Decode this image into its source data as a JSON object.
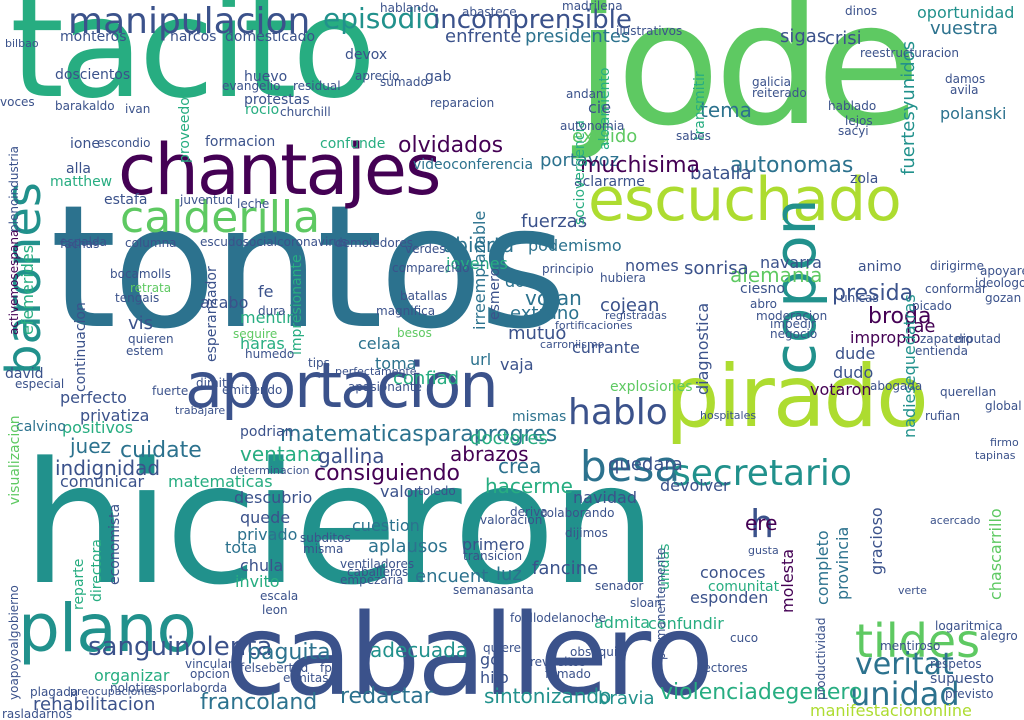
{
  "palette": {
    "dark_purple": "#440154",
    "indigo": "#3b528b",
    "steel_blue": "#2c728e",
    "teal": "#21918c",
    "green": "#27ad81",
    "light_green": "#5ec962",
    "lime": "#addc30",
    "yellow": "#fde725"
  },
  "words": {
    "tontos": "tontos",
    "hicieron": "hicieron",
    "tacito": "tacito",
    "jode": "jode",
    "caballero": "caballero",
    "chantajes": "chantajes",
    "pirado": "pirado",
    "escuchado": "escuchado",
    "aportacion": "aportacion",
    "plano": "plano",
    "calderilla": "calderilla",
    "barones": "barones",
    "copon": "copon",
    "manipulacion": "manipulacion",
    "episodio": "episodio",
    "incomprensible": "incomprensible",
    "besa": "besa",
    "secretario": "secretario",
    "tildes": "tildes",
    "unidad": "unidad",
    "veritat": "veritat",
    "sanguinolenta": "sanguinolenta",
    "paguita": "paguita",
    "adecuada": "adecuada",
    "redactar": "redactar",
    "sintonizando": "sintonizando",
    "francoland": "francoland",
    "rehabilitacion": "rehabilitacion",
    "violenciadegenero": "violenciadegenero",
    "manifestaciononline": "manifestaciononline",
    "bravia": "bravia",
    "hablo": "hablo",
    "matematicasparaprogres": "matematicasparaprogres",
    "consiguiendo": "consiguiendo",
    "cuidate": "cuidate",
    "indignidad": "indignidad",
    "juez": "juez",
    "ventana": "ventana",
    "gallina": "gallina",
    "abrazos": "abrazos",
    "crea": "crea",
    "hacerme": "hacerme",
    "doctores": "doctores",
    "quedara": "quedara",
    "alemania": "alemania",
    "autonomas": "autonomas",
    "batalla": "batalla",
    "portavoz": "portavoz",
    "muchisima": "muchisima",
    "olvidados": "olvidados",
    "exigido": "exigido",
    "tema": "tema",
    "presidentes": "presidentes",
    "enfrente": "enfrente",
    "sigas": "sigas",
    "crisi": "crisi",
    "vuestra": "vuestra",
    "oportunidad": "oportunidad",
    "fuertesyunidos": "fuertesyunidos",
    "polanski": "polanski",
    "abierta": "abierta",
    "fuerzas": "fuerzas",
    "podemismo": "podemismo",
    "jovenes": "jovenes",
    "sonrisa": "sonrisa",
    "navarra": "navarra",
    "nomes": "nomes",
    "presida": "presida",
    "broda": "broda",
    "rae": "rae",
    "impropio": "impropio",
    "dude": "dude",
    "dudo": "dudo",
    "votaron": "votaron",
    "votan": "votan",
    "extrano": "extrano",
    "mutuo": "mutuo",
    "cojean": "cojean",
    "currante": "currante",
    "dono": "dono",
    "vaja": "vaja",
    "confiad": "confiad",
    "url": "url",
    "toma": "toma",
    "celaa": "celaa",
    "fe": "fe",
    "mentir": "mentir",
    "vis": "vis",
    "acabo": "acabo",
    "haras": "haras",
    "perfecto": "perfecto",
    "privatiza": "privatiza",
    "positivos": "positivos",
    "calvino": "calvino",
    "comunicar": "comunicar",
    "matematicas": "matematicas",
    "podrian": "podrian",
    "valor": "valor",
    "descubrio": "descubrio",
    "quede": "quede",
    "privado": "privado",
    "tota": "tota",
    "cuestion": "cuestion",
    "aplausos": "aplausos",
    "encuent": "encuent",
    "luz": "luz",
    "fancine": "fancine",
    "primero": "primero",
    "chula": "chula",
    "invito": "invito",
    "navidad": "navidad",
    "devolver": "devolver",
    "conoces": "conoces",
    "esponden": "esponden",
    "completo": "completo",
    "provincia": "provincia",
    "gracioso": "gracioso",
    "molesta": "molesta",
    "chascarrillo": "chascarrillo",
    "comunitat": "comunitat",
    "admita": "admita",
    "confundir": "confundir",
    "gol": "gol",
    "hijo": "hijo",
    "formacion": "formacion",
    "confunde": "confunde",
    "protestas": "protestas",
    "huevo": "huevo",
    "gab": "gab",
    "devox": "devox",
    "domesticado": "domesticado",
    "monteros": "monteros",
    "narcos": "narcos",
    "doscientos": "doscientos",
    "proveedor": "proveedor",
    "efemerides": "efemerides",
    "matthew": "matthew",
    "alla": "alla",
    "estafa": "estafa",
    "ione": "ione",
    "voces": "voces",
    "esperanzador": "esperanzador",
    "impresionante": "impresionante",
    "irreemplazable": "irreemplazable",
    "esmero": "esmero",
    "diagnostica": "diagnostica",
    "nadiesequedatras": "nadiesequedatras",
    "aclararme": "aclararme",
    "videoconferencia": "videoconferencia",
    "sociovergencia": "sociovergencia",
    "alojamiento": "alojamiento",
    "transmitir": "transmitir",
    "organizar": "organizar",
    "economista": "economista",
    "directora": "directora",
    "reparte": "reparte",
    "unidas": "unidas",
    "orgullo": "orgullo",
    "continuacion": "continuacion",
    "explosiones": "explosiones",
    "fotillodelanoche": "fotillodelanoche",
    "comprometo": "comprometo",
    "hablando": "hablando",
    "abastece": "abastece",
    "madrilena": "madrilena",
    "dinos": "dinos",
    "rocio": "rocio",
    "h": "h",
    "cie": "cie",
    "ere": "ere",
    "zola": "zola",
    "david": "david",
    "fachas": "fachas",
    "bocamolls": "bocamolls",
    "tengais": "tengais",
    "retrata": "retrata",
    "quieren": "quieren",
    "estem": "estem",
    "especial": "especial",
    "fuerte": "fuerte",
    "dimite": "dimite",
    "emitiendo": "emitiendo",
    "apasionante": "apasionante",
    "profugo": "profugo",
    "mismas": "mismas",
    "existente": "existente",
    "desgracia": "desgracia",
    "confiamos": "confiamos",
    "asombroso": "asombroso",
    "conocerte": "conocerte",
    "repetir": "repetir",
    "aguantar": "aguantar",
    "cabeceras": "cabeceras",
    "ventiladores": "ventiladores",
    "caballeros": "caballeros",
    "empezaria": "empezaria",
    "subditos": "subditos",
    "misma": "misma",
    "murcia": "murcia",
    "transicion": "transicion",
    "dijimos": "dijimos",
    "semanasanta": "semanasanta",
    "valoracion": "valoracion",
    "sloan": "sloan",
    "senador": "senador",
    "revueltos": "revueltos",
    "fumado": "fumado",
    "lectores": "lectores",
    "cuco": "cuco",
    "respetos": "respetos",
    "mentiroso": "mentiroso",
    "supuesto": "supuesto",
    "previsto": "previsto",
    "logaritmica": "logaritmica",
    "global": "global",
    "alegro": "alegro",
    "apoyemos": "apoyemos",
    "gozan": "gozan",
    "ideologos": "ideologos",
    "apoyare": "apoyare",
    "conformar": "conformar",
    "dirigirme": "dirigirme",
    "picado": "picado",
    "animo": "animo",
    "abrazo": "abrazo",
    "diputad": "diputad",
    "zapatero": "zapatero",
    "entienda": "entienda",
    "abogada": "abogada",
    "querellan": "querellan",
    "rufian": "rufian",
    "damos": "damos",
    "avila": "avila",
    "lejos": "lejos",
    "sacyi": "sacyi",
    "hablado": "hablado",
    "galicia": "galicia",
    "reiterado": "reiterado",
    "andan": "andan",
    "autonomia": "autonomia",
    "reparacion": "reparacion",
    "jefazo": "jefazo",
    "aprecio": "aprecio",
    "sumado": "sumado",
    "residual": "residual",
    "evangelio": "evangelio",
    "churchill": "churchill",
    "barakaldo": "barakaldo",
    "ivan": "ivan",
    "escondio": "escondio",
    "juventud": "juventud",
    "leche": "leche",
    "espalda": "espalda",
    "columna": "columna",
    "escudosocialcoronavirus": "escudosocialcoronavirus",
    "demoledores": "demoledores",
    "comparecido": "comparecido",
    "verdes": "verdes",
    "principio": "principio",
    "hubiera": "hubiera",
    "parciales": "parciales",
    "ciesno": "ciesno",
    "almudena": "almudena",
    "atreven": "atreven",
    "abro": "abro",
    "sabes": "sabes",
    "apoyar": "apoyar",
    "recibiendo": "recibiendo",
    "acento": "acento",
    "decada": "decada",
    "necesarias": "necesarias",
    "comercio": "comercio",
    "recomienda": "recomienda",
    "reestructuracion": "reestructuracion",
    "ilustrativos": "ilustrativos",
    "privatizar": "privatizar",
    "ensenanza": "ensenanza",
    "pagara": "pagara",
    "publican": "publican",
    "bocado": "bocado",
    "salida": "salida",
    "visualizacion": "visualizacion",
    "yoapoyoalgobierno": "yoapoyoalgobierno",
    "activemosespana": "activemosespana",
    "plenoindustria": "plenoindustria",
    "rasladarnos": "rasladarnos",
    "plagada": "plagada",
    "precupaciones": "preocupaciones",
    "nolotiresporlaborda": "nolotiresporlaborda",
    "fp": "fp",
    "ermitas": "ermitas",
    "felsebertad": "felsebertad",
    "iglesias": "iglesias",
    "comenzamos": "comenzamos",
    "tenga": "tenga",
    "obsequia": "obsequia",
    "brote": "brote",
    "productividad": "productividad",
    "permanentemente": "permanentemente",
    "cantar": "cantar",
    "mil": "mil",
    "tuyo": "tuyo",
    "sepa": "sepa",
    "aprendo": "aprendo",
    "ataques": "ataques",
    "esperando": "esperando",
    "reventaron": "reventaron",
    "deriva": "deriva",
    "colaborando": "colaborando",
    "agradecidos": "agradecidos",
    "vinculan": "vinculan",
    "opcion": "opcion",
    "dura": "dura",
    "magnifica": "magnifica",
    "batallas": "batallas",
    "seguire": "seguire",
    "besos": "besos",
    "cierre": "cierre",
    "consideran": "consideran",
    "ordenacion": "ordenacion",
    "apuestan": "apuestan",
    "unicas": "unicas",
    "moderacion": "moderacion",
    "impedir": "impedir",
    "negocio": "negocio",
    "humedo": "humedo",
    "tips": "tips",
    "perfectamente": "perfectamente",
    "gobernantes": "gobernantes",
    "trabajare": "trabajare",
    "toledo": "toledo",
    "determinacion": "determinacion",
    "escala": "escala",
    "leon": "leon",
    "quiere": "quiere",
    "bilbao": "bilbao",
    "plena": "plena",
    "aceptar": "aceptar",
    "horario": "horario",
    "beneficios": "beneficios",
    "carroniismo": "carroniismo",
    "hospitales": "hospitales",
    "acercado": "acercado",
    "gusta": "gusta",
    "tapinas": "tapinas",
    "firmo": "firmo",
    "verte": "verte",
    "registradas": "registradas",
    "enmis": "enmis",
    "fortificaciones": "fortificaciones",
    "tenemos": "tenemos"
  }
}
